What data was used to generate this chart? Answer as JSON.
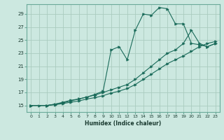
{
  "xlabel": "Humidex (Indice chaleur)",
  "ylabel": "",
  "bg_color": "#cce8e0",
  "grid_color": "#aaccbf",
  "line_color": "#1a6b5a",
  "xlim": [
    -0.5,
    23.5
  ],
  "ylim": [
    14.0,
    30.5
  ],
  "yticks": [
    15,
    17,
    19,
    21,
    23,
    25,
    27,
    29
  ],
  "xticks": [
    0,
    1,
    2,
    3,
    4,
    5,
    6,
    7,
    8,
    9,
    10,
    11,
    12,
    13,
    14,
    15,
    16,
    17,
    18,
    19,
    20,
    21,
    22,
    23
  ],
  "line1_x": [
    0,
    1,
    2,
    3,
    4,
    5,
    6,
    7,
    8,
    9,
    10,
    11,
    12,
    13,
    14,
    15,
    16,
    17,
    18,
    19,
    20,
    21,
    22,
    23
  ],
  "line1_y": [
    15,
    15,
    15,
    15.2,
    15.4,
    15.7,
    16.0,
    16.3,
    16.7,
    17.2,
    23.5,
    24.0,
    22.0,
    26.5,
    29.0,
    28.8,
    30.0,
    29.8,
    27.5,
    27.5,
    24.5,
    24.3,
    24.0,
    24.5
  ],
  "line2_x": [
    0,
    2,
    3,
    4,
    5,
    6,
    7,
    8,
    9,
    10,
    11,
    12,
    13,
    14,
    15,
    16,
    17,
    18,
    19,
    20,
    21,
    22,
    23
  ],
  "line2_y": [
    15,
    15,
    15.2,
    15.5,
    15.8,
    16.0,
    16.3,
    16.6,
    17.0,
    17.4,
    17.8,
    18.2,
    19.0,
    20.0,
    21.0,
    22.0,
    23.0,
    23.5,
    24.5,
    26.5,
    24.5,
    24.0,
    24.5
  ],
  "line3_x": [
    0,
    2,
    3,
    4,
    5,
    6,
    7,
    8,
    9,
    10,
    11,
    12,
    13,
    14,
    15,
    16,
    17,
    18,
    19,
    20,
    21,
    22,
    23
  ],
  "line3_y": [
    15,
    15,
    15.1,
    15.3,
    15.5,
    15.7,
    16.0,
    16.2,
    16.5,
    16.9,
    17.2,
    17.6,
    18.2,
    19.0,
    19.8,
    20.6,
    21.4,
    22.0,
    22.6,
    23.3,
    24.0,
    24.5,
    24.8
  ]
}
